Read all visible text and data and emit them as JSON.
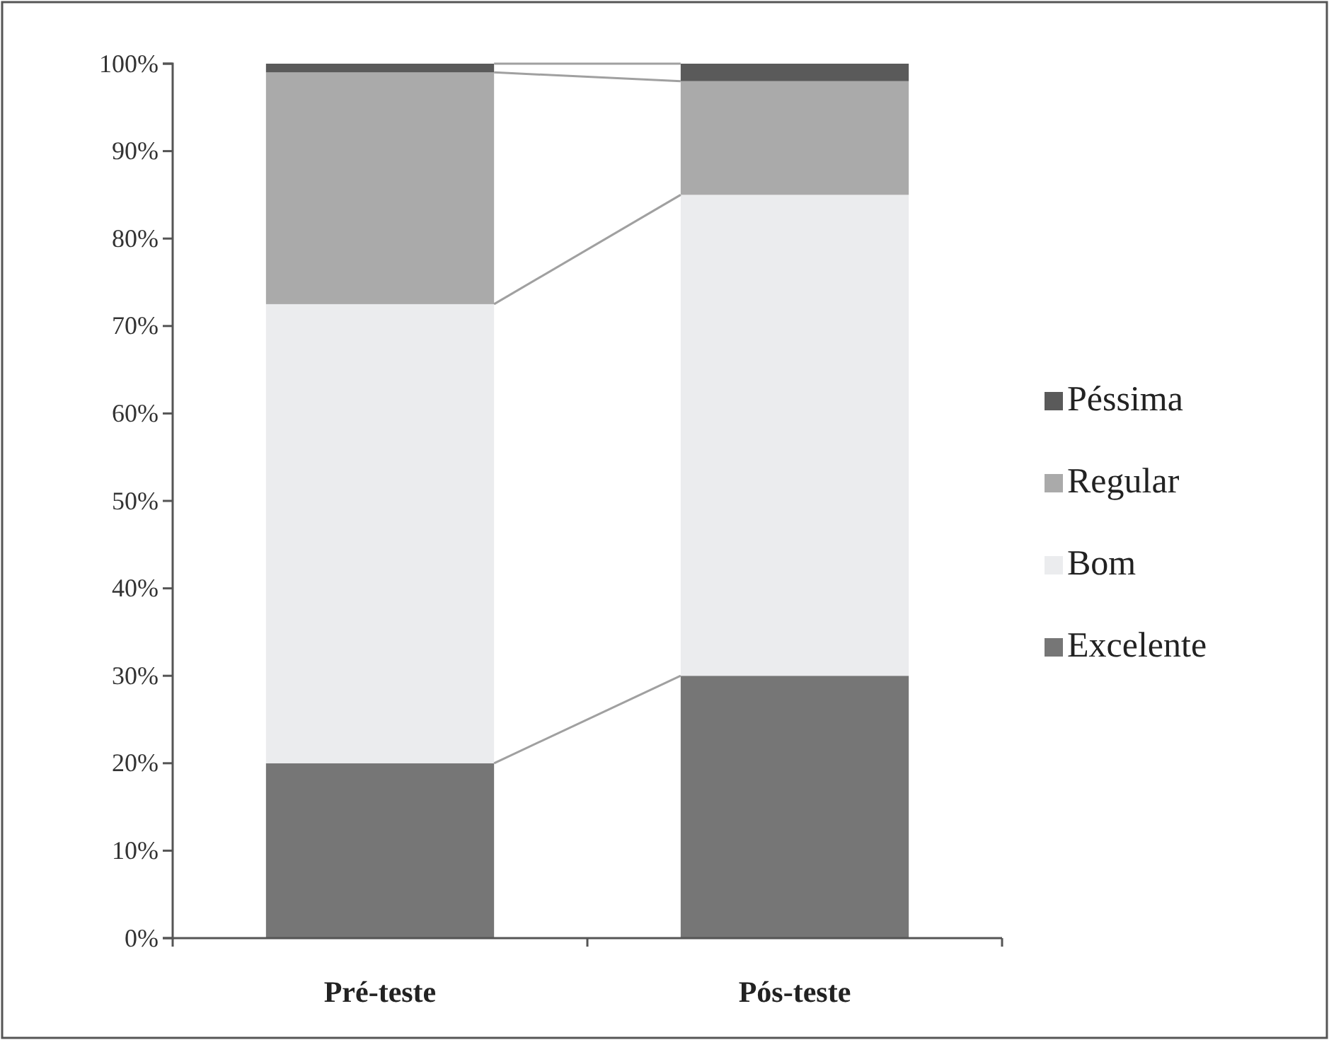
{
  "chart_data": {
    "type": "bar",
    "stacked": true,
    "categories": [
      "Pré-teste",
      "Pós-teste"
    ],
    "series": [
      {
        "name": "Excelente",
        "color": "#767676",
        "values": [
          20,
          30
        ]
      },
      {
        "name": "Bom",
        "color": "#ebecee",
        "values": [
          52.5,
          55
        ]
      },
      {
        "name": "Regular",
        "color": "#aaaaaa",
        "values": [
          26.5,
          13
        ]
      },
      {
        "name": "Péssima",
        "color": "#5a5a5a",
        "values": [
          1,
          2
        ]
      }
    ],
    "ylim": [
      0,
      100
    ],
    "yticks": [
      {
        "value": 0,
        "label": "0%"
      },
      {
        "value": 10,
        "label": "10%"
      },
      {
        "value": 20,
        "label": "20%"
      },
      {
        "value": 30,
        "label": "30%"
      },
      {
        "value": 40,
        "label": "40%"
      },
      {
        "value": 50,
        "label": "50%"
      },
      {
        "value": 60,
        "label": "60%"
      },
      {
        "value": 70,
        "label": "70%"
      },
      {
        "value": 80,
        "label": "80%"
      },
      {
        "value": 90,
        "label": "90%"
      },
      {
        "value": 100,
        "label": "100%"
      }
    ],
    "grid": false,
    "legend": "right"
  }
}
